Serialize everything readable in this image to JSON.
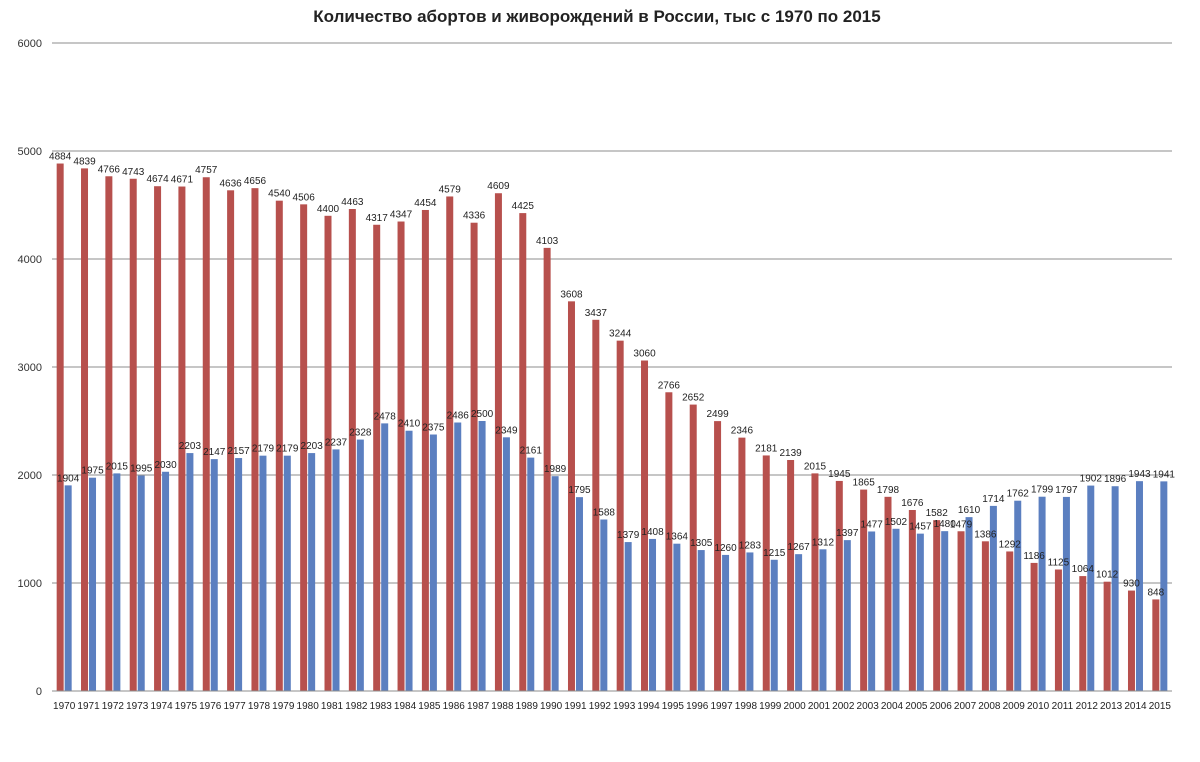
{
  "chart_data": {
    "type": "bar",
    "title": "Количество абортов и живорождений в России, тыс с 1970 по 2015",
    "xlabel": "",
    "ylabel": "",
    "ylim": [
      0,
      6000
    ],
    "yticks": [
      0,
      1000,
      2000,
      3000,
      4000,
      5000,
      6000
    ],
    "grid": true,
    "legend": "none",
    "categories": [
      "1970",
      "1971",
      "1972",
      "1973",
      "1974",
      "1975",
      "1976",
      "1977",
      "1978",
      "1979",
      "1980",
      "1981",
      "1982",
      "1983",
      "1984",
      "1985",
      "1986",
      "1987",
      "1988",
      "1989",
      "1990",
      "1991",
      "1992",
      "1993",
      "1994",
      "1995",
      "1996",
      "1997",
      "1998",
      "1999",
      "2000",
      "2001",
      "2002",
      "2003",
      "2004",
      "2005",
      "2006",
      "2007",
      "2008",
      "2009",
      "2010",
      "2011",
      "2012",
      "2013",
      "2014",
      "2015"
    ],
    "series": [
      {
        "color": "#b7504d",
        "values": [
          4884,
          4839,
          4766,
          4743,
          4674,
          4671,
          4757,
          4636,
          4656,
          4540,
          4506,
          4400,
          4463,
          4317,
          4347,
          4454,
          4579,
          4336,
          4609,
          4425,
          4103,
          3608,
          3437,
          3244,
          3060,
          2766,
          2652,
          2499,
          2346,
          2181,
          2139,
          2015,
          1945,
          1865,
          1798,
          1676,
          1582,
          1479,
          1386,
          1292,
          1186,
          1125,
          1064,
          1012,
          930,
          848
        ]
      },
      {
        "color": "#5b7fc0",
        "values": [
          1904,
          1975,
          2015,
          1995,
          2030,
          2203,
          2147,
          2157,
          2179,
          2179,
          2203,
          2237,
          2328,
          2478,
          2410,
          2375,
          2486,
          2500,
          2349,
          2161,
          1989,
          1795,
          1588,
          1379,
          1408,
          1364,
          1305,
          1260,
          1283,
          1215,
          1267,
          1312,
          1397,
          1477,
          1502,
          1457,
          1480,
          1610,
          1714,
          1762,
          1799,
          1797,
          1902,
          1896,
          1943,
          1941
        ]
      }
    ]
  }
}
